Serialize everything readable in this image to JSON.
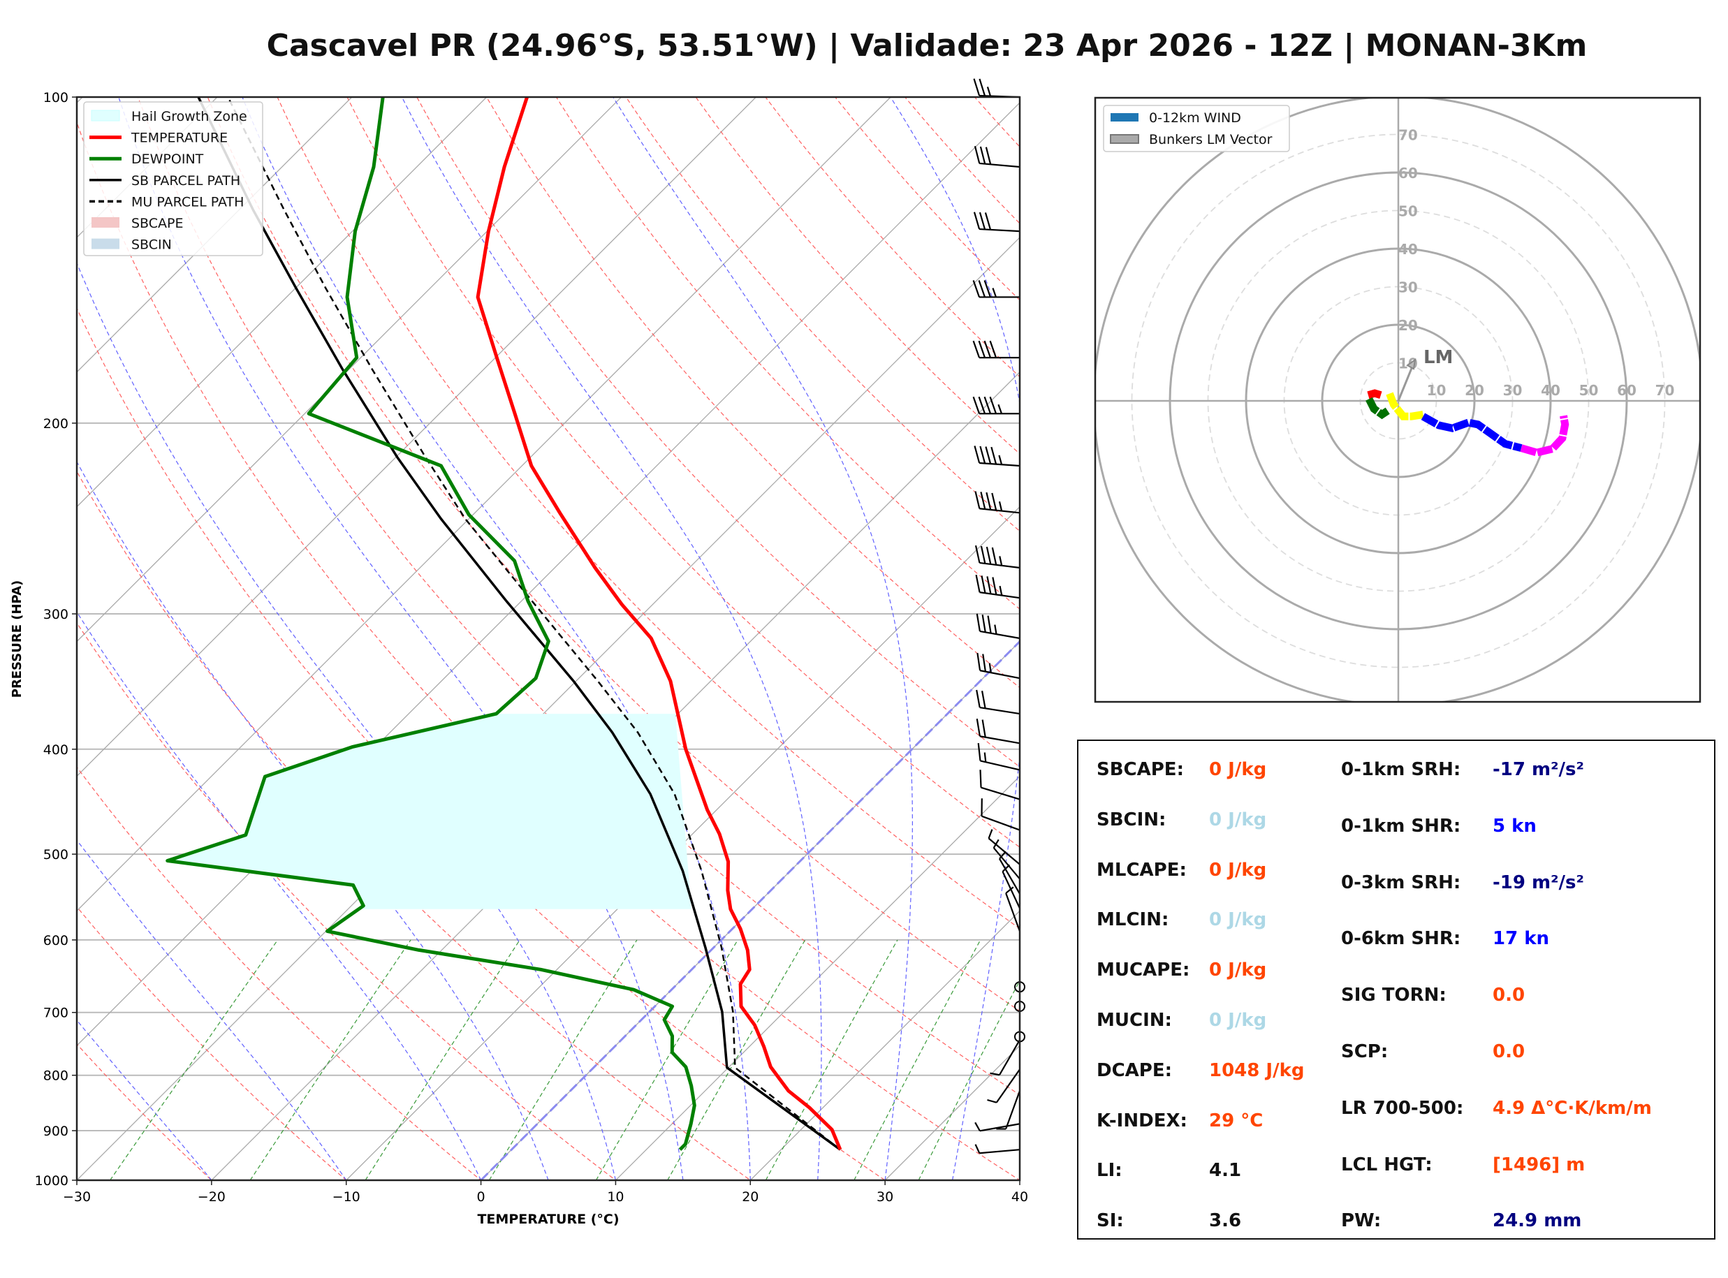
{
  "title": "Cascavel PR (24.96°S, 53.51°W) | Validade: 23 Apr 2026 - 12Z | MONAN-3Km",
  "chart_data": [
    {
      "type": "line",
      "subtype": "skew-t log-p",
      "xlabel": "TEMPERATURE (°C)",
      "ylabel": "PRESSURE (HPA)",
      "xlim": [
        -30,
        40
      ],
      "ylim": [
        1000,
        100
      ],
      "y_scale": "log",
      "x_ticks": [
        "−30",
        "−20",
        "−10",
        "0",
        "10",
        "20",
        "30",
        "40"
      ],
      "x_tick_values": [
        -30,
        -20,
        -10,
        0,
        10,
        20,
        30,
        40
      ],
      "y_ticks": [
        "100",
        "200",
        "300",
        "400",
        "500",
        "600",
        "700",
        "800",
        "900",
        "1000"
      ],
      "y_tick_values": [
        100,
        200,
        300,
        400,
        500,
        600,
        700,
        800,
        900,
        1000
      ],
      "grid": true,
      "legend_position": "top-left",
      "legend": [
        "Hail Growth Zone",
        "TEMPERATURE",
        "DEWPOINT",
        "SB PARCEL PATH",
        "MU PARCEL PATH",
        "SBCAPE",
        "SBCIN"
      ],
      "colors": {
        "temperature": "#ff0000",
        "dewpoint": "#008000",
        "sb_parcel": "#000000",
        "mu_parcel": "#000000",
        "hail": "#e0ffff",
        "sbcape": "#f4c6c6",
        "sbcin": "#c9dcea",
        "dry_adiabat": "#ff6060",
        "moist_adiabat": "#6060ff",
        "mixing_ratio": "#3a9a3a",
        "isotherm": "#aaaaaa",
        "zero_isotherm": "#8c8cf0"
      },
      "hail_growth_zone": {
        "p_top": 371,
        "p_bottom": 562,
        "t_right_top": -20.2,
        "t_right_bottom": -4.5
      },
      "series": [
        {
          "name": "TEMPERATURE",
          "p": [
            937,
            898,
            857,
            827,
            786,
            753,
            719,
            691,
            659,
            639,
            613,
            586,
            562,
            540,
            508,
            479,
            455,
            400,
            346,
            316,
            294,
            272,
            242,
            219,
            196,
            174,
            153,
            133,
            116,
            100
          ],
          "t": [
            24.4,
            22.3,
            19.0,
            16.2,
            13.1,
            11.1,
            8.8,
            6.4,
            4.7,
            4.3,
            2.7,
            0.6,
            -1.6,
            -3.2,
            -5.3,
            -8.0,
            -10.7,
            -16.8,
            -23.0,
            -27.6,
            -32.3,
            -37.0,
            -43.7,
            -49.3,
            -54.4,
            -59.9,
            -65.8,
            -69.9,
            -73.5,
            -77.0
          ]
        },
        {
          "name": "DEWPOINT",
          "p": [
            937,
            926,
            887,
            853,
            818,
            786,
            762,
            736,
            711,
            691,
            667,
            639,
            613,
            589,
            558,
            534,
            507,
            480,
            424,
            398,
            371,
            344,
            318,
            292,
            268,
            243,
            219,
            196,
            174,
            153,
            133,
            116,
            100
          ],
          "t": [
            12.5,
            12.5,
            11.4,
            10.3,
            8.6,
            6.8,
            4.7,
            3.5,
            1.7,
            1.3,
            -2.8,
            -11.2,
            -21.7,
            -29.9,
            -29.1,
            -31.4,
            -47.0,
            -43.1,
            -46.0,
            -41.7,
            -33.5,
            -33.2,
            -35.0,
            -39.5,
            -43.5,
            -50.3,
            -56.0,
            -69.7,
            -70.3,
            -75.5,
            -79.8,
            -83.2,
            -87.7
          ]
        },
        {
          "name": "SB PARCEL PATH",
          "p": [
            937,
            787,
            699,
            610,
            518,
            440,
            386,
            346,
            292,
            245,
            215,
            178,
            150,
            127,
            100
          ],
          "t": [
            24.4,
            9.9,
            5.4,
            -0.6,
            -8.0,
            -16.1,
            -23.5,
            -30.2,
            -41.1,
            -52.1,
            -59.9,
            -70.6,
            -80.0,
            -89.0,
            -101.4
          ]
        },
        {
          "name": "MU PARCEL PATH",
          "p": [
            937,
            787,
            699,
            610,
            518,
            440,
            386,
            346,
            292,
            245,
            215,
            178,
            150,
            127,
            100
          ],
          "t": [
            24.4,
            10.5,
            6.2,
            0.6,
            -6.6,
            -14.3,
            -21.6,
            -28.4,
            -39.2,
            -50.3,
            -57.8,
            -68.4,
            -77.8,
            -86.7,
            -99.2
          ]
        }
      ],
      "wind_barbs": [
        {
          "p": 100,
          "speed_kt": 25,
          "dir_deg": 272
        },
        {
          "p": 116,
          "speed_kt": 30,
          "dir_deg": 275
        },
        {
          "p": 133,
          "speed_kt": 30,
          "dir_deg": 273
        },
        {
          "p": 153,
          "speed_kt": 35,
          "dir_deg": 270
        },
        {
          "p": 174,
          "speed_kt": 40,
          "dir_deg": 270
        },
        {
          "p": 196,
          "speed_kt": 45,
          "dir_deg": 270
        },
        {
          "p": 219,
          "speed_kt": 45,
          "dir_deg": 274
        },
        {
          "p": 242,
          "speed_kt": 45,
          "dir_deg": 276
        },
        {
          "p": 272,
          "speed_kt": 45,
          "dir_deg": 277
        },
        {
          "p": 290,
          "speed_kt": 45,
          "dir_deg": 278
        },
        {
          "p": 316,
          "speed_kt": 35,
          "dir_deg": 280
        },
        {
          "p": 344,
          "speed_kt": 25,
          "dir_deg": 281
        },
        {
          "p": 371,
          "speed_kt": 20,
          "dir_deg": 279
        },
        {
          "p": 395,
          "speed_kt": 20,
          "dir_deg": 280
        },
        {
          "p": 418,
          "speed_kt": 15,
          "dir_deg": 283
        },
        {
          "p": 445,
          "speed_kt": 10,
          "dir_deg": 287
        },
        {
          "p": 475,
          "speed_kt": 10,
          "dir_deg": 290
        },
        {
          "p": 511,
          "speed_kt": 5,
          "dir_deg": 310
        },
        {
          "p": 527,
          "speed_kt": 5,
          "dir_deg": 320
        },
        {
          "p": 544,
          "speed_kt": 5,
          "dir_deg": 330
        },
        {
          "p": 561,
          "speed_kt": 5,
          "dir_deg": 335
        },
        {
          "p": 589,
          "speed_kt": 5,
          "dir_deg": 340
        },
        {
          "p": 663,
          "speed_kt": 0,
          "dir_deg": 0
        },
        {
          "p": 691,
          "speed_kt": 0,
          "dir_deg": 0
        },
        {
          "p": 737,
          "speed_kt": 0,
          "dir_deg": 0
        },
        {
          "p": 742,
          "speed_kt": 5,
          "dir_deg": 210
        },
        {
          "p": 790,
          "speed_kt": 5,
          "dir_deg": 215
        },
        {
          "p": 827,
          "speed_kt": 5,
          "dir_deg": 200
        },
        {
          "p": 887,
          "speed_kt": 5,
          "dir_deg": 260
        },
        {
          "p": 937,
          "speed_kt": 5,
          "dir_deg": 265
        }
      ]
    },
    {
      "type": "line",
      "subtype": "hodograph",
      "units": "kt",
      "rings": [
        10,
        20,
        30,
        40,
        50,
        60,
        70,
        80
      ],
      "ring_labels": [
        "10",
        "20",
        "30",
        "40",
        "50",
        "60",
        "70"
      ],
      "legend_position": "top-left",
      "legend": [
        "0-12km WIND",
        "Bunkers LM Vector"
      ],
      "legend_colors": [
        "#1f77b4",
        "#aaaaaa"
      ],
      "segments": [
        {
          "color": "#ff0000",
          "u": [
            -7.9,
            -6.2,
            -4.6
          ],
          "v": [
            1.5,
            2.0,
            1.5
          ]
        },
        {
          "color": "#007000",
          "u": [
            -7.7,
            -6.4,
            -4.3,
            -2.8
          ],
          "v": [
            0.5,
            -2.1,
            -3.6,
            -2.6
          ]
        },
        {
          "color": "#ffff00",
          "u": [
            -2.3,
            -1.2,
            1.3,
            3.4,
            6.5
          ],
          "v": [
            1.9,
            -1.0,
            -4.1,
            -4.1,
            -3.6
          ]
        },
        {
          "color": "#0000ff",
          "u": [
            6.5,
            10.6,
            14.2,
            18.4,
            20.9,
            28.1,
            32.3
          ],
          "v": [
            -4.1,
            -6.4,
            -7.2,
            -5.7,
            -6.2,
            -11.3,
            -12.4
          ]
        },
        {
          "color": "#ff00ff",
          "u": [
            32.3,
            36.4,
            40.5,
            43.1,
            43.8,
            43.4
          ],
          "v": [
            -12.4,
            -13.6,
            -12.6,
            -9.8,
            -6.2,
            -3.9
          ]
        }
      ],
      "lm_vector": {
        "label": "LM",
        "u": 4.4,
        "v": 10.8
      }
    }
  ],
  "stats": {
    "left": [
      {
        "label": "SBCAPE:",
        "value": "0 J/kg",
        "color": "#ff4500"
      },
      {
        "label": "SBCIN:",
        "value": "0 J/kg",
        "color": "#add8e6"
      },
      {
        "label": "MLCAPE:",
        "value": "0 J/kg",
        "color": "#ff4500"
      },
      {
        "label": "MLCIN:",
        "value": "0 J/kg",
        "color": "#add8e6"
      },
      {
        "label": "MUCAPE:",
        "value": "0 J/kg",
        "color": "#ff4500"
      },
      {
        "label": "MUCIN:",
        "value": "0 J/kg",
        "color": "#add8e6"
      },
      {
        "label": "DCAPE:",
        "value": "1048 J/kg",
        "color": "#ff4500"
      },
      {
        "label": "K-INDEX:",
        "value": "29 °C",
        "color": "#ff4500"
      },
      {
        "label": "LI:",
        "value": "4.1",
        "color": "#111111"
      },
      {
        "label": "SI:",
        "value": "3.6",
        "color": "#111111"
      }
    ],
    "right": [
      {
        "label": "0-1km SRH:",
        "value": "-17 m²/s²",
        "color": "#000080"
      },
      {
        "label": "0-1km SHR:",
        "value": "5 kn",
        "color": "#0000ff"
      },
      {
        "label": "0-3km SRH:",
        "value": "-19 m²/s²",
        "color": "#000080"
      },
      {
        "label": "0-6km SHR:",
        "value": "17 kn",
        "color": "#0000ff"
      },
      {
        "label": "SIG TORN:",
        "value": "0.0",
        "color": "#ff4500"
      },
      {
        "label": "SCP:",
        "value": "0.0",
        "color": "#ff4500"
      },
      {
        "label": "LR 700-500:",
        "value": "4.9 Δ°C·K/km/m",
        "color": "#ff4500"
      },
      {
        "label": "LCL HGT:",
        "value": "[1496] m",
        "color": "#ff4500"
      },
      {
        "label": "PW:",
        "value": "24.9 mm",
        "color": "#000080"
      }
    ]
  }
}
